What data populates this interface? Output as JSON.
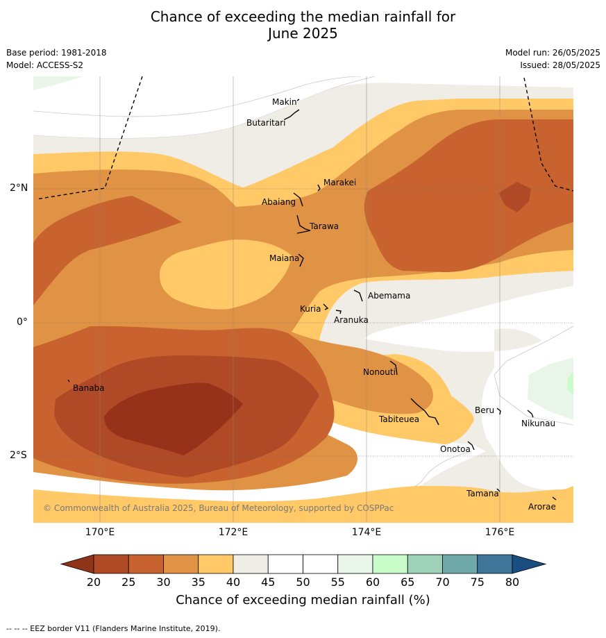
{
  "title": {
    "line1": "Chance of exceeding the median rainfall for",
    "line2": "June 2025"
  },
  "meta": {
    "base_period": "Base period: 1981-2018",
    "model": "Model: ACCESS-S2",
    "model_run": "Model run: 26/05/2025",
    "issued": "Issued: 28/05/2025"
  },
  "map": {
    "lat_labels": [
      "2°N",
      "0°",
      "2°S"
    ],
    "lon_labels": [
      "170°E",
      "172°E",
      "174°E",
      "176°E"
    ],
    "copyright": "© Commonwealth of Australia 2025, Bureau of Meteorology, supported by COSPPac",
    "places": [
      "Makin",
      "Butaritari",
      "Marakei",
      "Abaiang",
      "Tarawa",
      "Maiana",
      "Abemama",
      "Kuria",
      "Aranuka",
      "Nonouti",
      "Banaba",
      "Tabiteuea",
      "Beru",
      "Nikunau",
      "Onotoa",
      "Tamana",
      "Arorae"
    ],
    "colors": {
      "c20_25": "#b04a26",
      "c25_30": "#c8632f",
      "c30_35": "#e09345",
      "c35_40": "#fec966",
      "c40_45": "#f0ece6",
      "c45_55": "#ffffff",
      "c55_60": "#e8f5e8",
      "c60_65": "#c8fcc8",
      "c_lt20": "#953219",
      "ocean_line": "#c8c8c8"
    }
  },
  "colorbar": {
    "ticks": [
      "20",
      "25",
      "30",
      "35",
      "40",
      "45",
      "50",
      "55",
      "60",
      "65",
      "70",
      "75",
      "80"
    ],
    "colors": [
      "#b04a26",
      "#c8632f",
      "#e09345",
      "#fec966",
      "#f0ece6",
      "#ffffff",
      "#ffffff",
      "#e8f5e8",
      "#c8fcc8",
      "#9ed2b8",
      "#6fa8a8",
      "#3f7599"
    ],
    "low_color": "#8e3418",
    "high_color": "#1a4e82",
    "label": "Chance of exceeding median rainfall (%)"
  },
  "footer": "--  --  -- EEZ border V11 (Flanders Marine Institute, 2019)."
}
